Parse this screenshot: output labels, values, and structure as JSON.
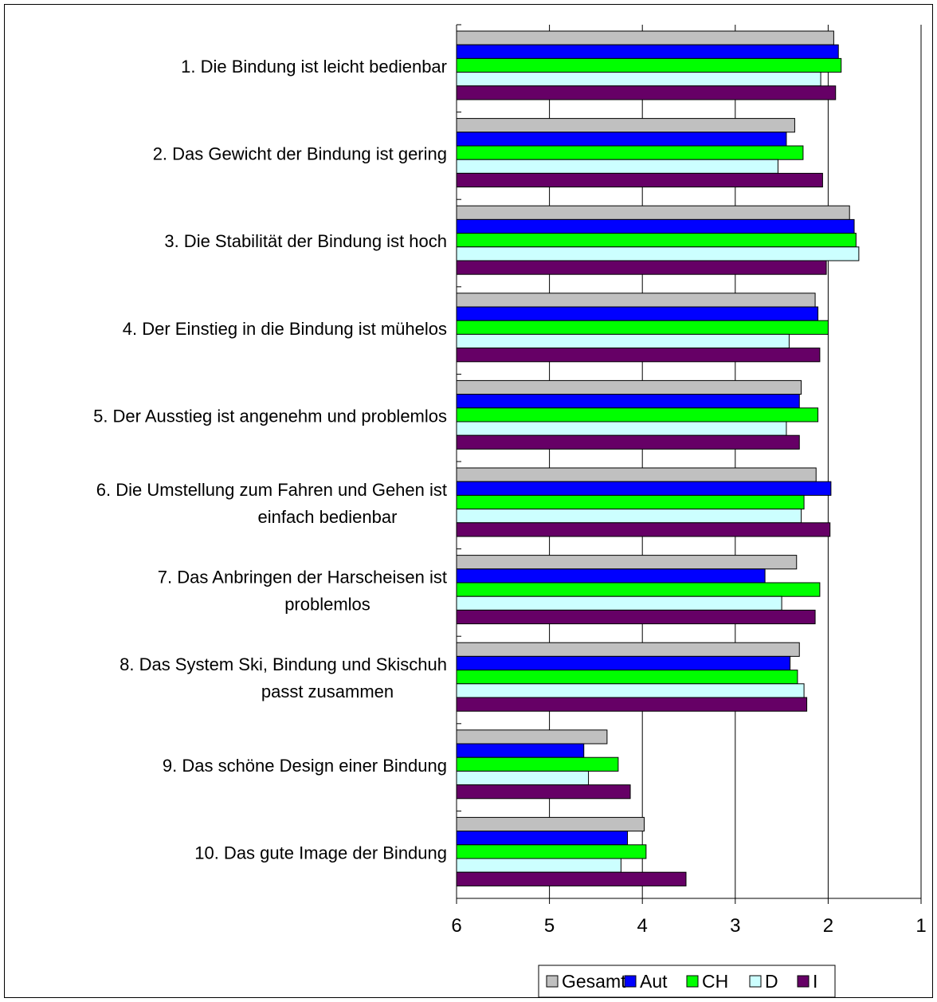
{
  "chart_data": {
    "type": "bar",
    "orientation": "horizontal",
    "categories": [
      [
        "1. Die Bindung ist leicht bedienbar"
      ],
      [
        "2. Das Gewicht der Bindung ist gering"
      ],
      [
        "3. Die Stabilität der Bindung ist hoch"
      ],
      [
        "4. Der Einstieg in die Bindung ist mühelos"
      ],
      [
        "5. Der Ausstieg ist angenehm und problemlos"
      ],
      [
        "6. Die Umstellung zum Fahren und Gehen ist",
        "einfach bedienbar"
      ],
      [
        "7. Das Anbringen der Harscheisen ist",
        "problemlos"
      ],
      [
        "8. Das System Ski, Bindung und Skischuh",
        "passt zusammen"
      ],
      [
        "9. Das schöne Design einer Bindung"
      ],
      [
        "10. Das gute Image der Bindung"
      ]
    ],
    "series": [
      {
        "name": "Gesamt",
        "color": "#c0c0c0",
        "values": [
          1.94,
          2.36,
          1.77,
          2.14,
          2.29,
          2.13,
          2.34,
          2.31,
          4.38,
          3.98
        ]
      },
      {
        "name": "Aut",
        "color": "#0000ff",
        "values": [
          1.89,
          2.45,
          1.72,
          2.11,
          2.31,
          1.97,
          2.68,
          2.41,
          4.63,
          4.16
        ]
      },
      {
        "name": "CH",
        "color": "#00ff00",
        "values": [
          1.86,
          2.27,
          1.7,
          2.0,
          2.11,
          2.26,
          2.09,
          2.33,
          4.26,
          3.96
        ]
      },
      {
        "name": "D",
        "color": "#ccffff",
        "values": [
          2.08,
          2.54,
          1.67,
          2.42,
          2.45,
          2.29,
          2.5,
          2.26,
          4.58,
          4.23
        ]
      },
      {
        "name": "I",
        "color": "#660066",
        "values": [
          1.92,
          2.06,
          2.02,
          2.09,
          2.31,
          1.98,
          2.14,
          2.23,
          4.13,
          3.53
        ]
      }
    ],
    "xlim": [
      6,
      1
    ],
    "x_reversed": true,
    "x_ticks": [
      6,
      5,
      4,
      3,
      2,
      1
    ],
    "grid": true,
    "legend": "bottom"
  }
}
